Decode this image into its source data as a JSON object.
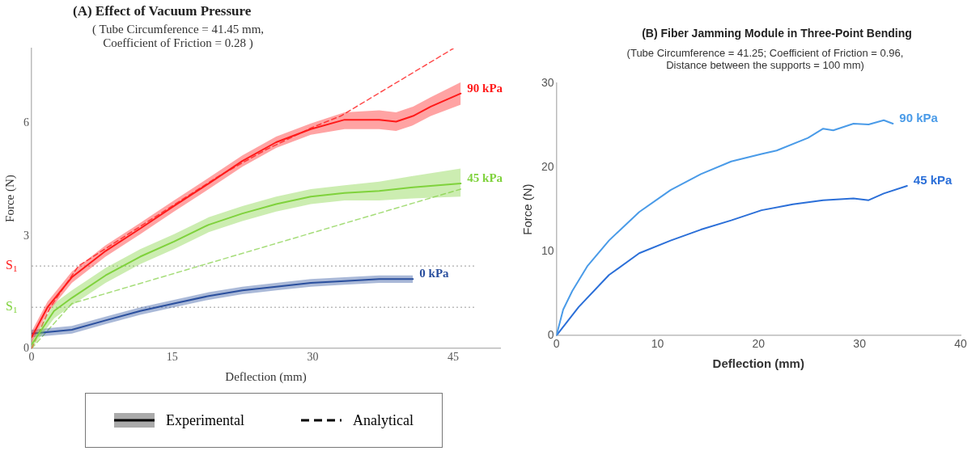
{
  "chart_data": [
    {
      "type": "line",
      "title": "(A) Effect of Vacuum Pressure",
      "subtitle": "( Tube Circumference = 41.45 mm,\nCoefficient of Friction = 0.28 )",
      "xlabel": "Deflection (mm)",
      "ylabel": "Force (N)",
      "xlim": [
        0,
        50
      ],
      "ylim": [
        0,
        8
      ],
      "xticks": [
        0,
        15,
        30,
        45
      ],
      "yticks": [
        0,
        3,
        6
      ],
      "grid": false,
      "legend": "bottom",
      "marker": "none",
      "line_style": "solid",
      "annotations": [
        "Experimental",
        "Analytical"
      ],
      "ref_lines": [
        {
          "axis": "y",
          "value": 2.2,
          "label": "S$_{1}$",
          "color": "#999999",
          "line_style": "dotted"
        },
        {
          "axis": "y",
          "value": 1.1,
          "label": "S$_{1}$",
          "color": "#999999",
          "line_style": "dotted"
        }
      ],
      "series": [
        {
          "name": "90 kPa",
          "color": "#ff1a1a",
          "x": [
            0,
            1.7,
            4.3,
            7.9,
            11.6,
            15.2,
            18.9,
            22.5,
            26.1,
            29.8,
            33.4,
            37.1,
            38.9,
            40.7,
            42.6,
            45.8
          ],
          "values": [
            0.3,
            1.1,
            1.9,
            2.6,
            3.2,
            3.8,
            4.4,
            5.0,
            5.5,
            5.85,
            6.1,
            6.1,
            6.05,
            6.2,
            6.45,
            6.8
          ],
          "lower": [
            0.15,
            0.95,
            1.75,
            2.45,
            3.05,
            3.65,
            4.25,
            4.85,
            5.35,
            5.7,
            5.85,
            5.85,
            5.8,
            5.95,
            6.2,
            6.5
          ],
          "upper": [
            0.45,
            1.25,
            2.05,
            2.75,
            3.35,
            3.95,
            4.55,
            5.15,
            5.65,
            6.0,
            6.3,
            6.35,
            6.3,
            6.45,
            6.7,
            7.1
          ]
        },
        {
          "name": "45 kPa",
          "color": "#7fd23c",
          "x": [
            0,
            2.4,
            4.3,
            7.9,
            11.6,
            15.2,
            18.9,
            22.5,
            26.1,
            29.8,
            33.4,
            37.1,
            40.7,
            45.8
          ],
          "values": [
            0.1,
            1.0,
            1.35,
            1.95,
            2.45,
            2.85,
            3.3,
            3.6,
            3.85,
            4.05,
            4.15,
            4.2,
            4.3,
            4.4
          ],
          "lower": [
            0,
            0.8,
            1.15,
            1.75,
            2.25,
            2.65,
            3.1,
            3.4,
            3.65,
            3.85,
            3.95,
            3.95,
            4.0,
            4.05
          ],
          "upper": [
            0.2,
            1.2,
            1.55,
            2.15,
            2.65,
            3.05,
            3.5,
            3.8,
            4.05,
            4.25,
            4.35,
            4.45,
            4.6,
            4.8
          ]
        },
        {
          "name": "0 kPa",
          "color": "#2a4f9e",
          "x": [
            0,
            4.3,
            7.9,
            11.6,
            15.2,
            18.9,
            22.5,
            26.1,
            29.8,
            33.4,
            37.1,
            40.7
          ],
          "values": [
            0.4,
            0.5,
            0.75,
            1.0,
            1.2,
            1.4,
            1.55,
            1.65,
            1.75,
            1.8,
            1.85,
            1.85
          ],
          "lower": [
            0.3,
            0.4,
            0.65,
            0.9,
            1.1,
            1.3,
            1.45,
            1.55,
            1.65,
            1.7,
            1.75,
            1.75
          ],
          "upper": [
            0.5,
            0.6,
            0.85,
            1.1,
            1.3,
            1.5,
            1.65,
            1.75,
            1.85,
            1.9,
            1.95,
            1.95
          ]
        },
        {
          "type": "line",
          "color": "#ff4d4d",
          "line_style": "dashed",
          "x": [
            0,
            2,
            5,
            10,
            15,
            20,
            25,
            30,
            33,
            45
          ],
          "values": [
            0,
            1.1,
            2.2,
            3.0,
            3.8,
            4.6,
            5.3,
            5.9,
            6.2,
            8.0
          ]
        },
        {
          "type": "line",
          "color": "#a6dd7a",
          "line_style": "dashed",
          "x": [
            0,
            4.3,
            45.8
          ],
          "values": [
            0,
            1.2,
            4.25
          ]
        }
      ]
    },
    {
      "type": "line",
      "title": "(B) Fiber Jamming Module in Three-Point Bending",
      "subtitle": "(Tube Circumference = 41.25; Coefficient of Friction = 0.96,\nDistance between the supports = 100 mm)",
      "xlabel": "Deflection (mm)",
      "ylabel": "Force (N)",
      "xlim": [
        0,
        40
      ],
      "ylim": [
        0,
        30
      ],
      "xticks": [
        0,
        10,
        20,
        30,
        40
      ],
      "yticks": [
        0,
        10,
        20,
        30
      ],
      "grid": false,
      "marker": "none",
      "line_style": "solid",
      "series": [
        {
          "name": "90 kPa",
          "color": "#4a9be8",
          "x": [
            0,
            0.67,
            1.57,
            3.09,
            5.2,
            8.2,
            11.3,
            14.3,
            17.3,
            20.3,
            21.8,
            24.9,
            26.4,
            27.4,
            29.4,
            30.9,
            32.4,
            33.3
          ],
          "values": [
            0,
            3.1,
            5.3,
            8.3,
            11.3,
            14.7,
            17.3,
            19.2,
            20.7,
            21.6,
            22.0,
            23.5,
            24.6,
            24.4,
            25.2,
            25.1,
            25.6,
            25.2
          ]
        },
        {
          "name": "45 kPa",
          "color": "#2b6fd8",
          "x": [
            0,
            2.2,
            5.2,
            8.2,
            11.3,
            14.3,
            17.3,
            20.3,
            23.4,
            26.4,
            29.4,
            30.9,
            32.4,
            34.7
          ],
          "values": [
            0,
            3.4,
            7.2,
            9.8,
            11.3,
            12.6,
            13.7,
            14.9,
            15.6,
            16.1,
            16.3,
            16.1,
            16.9,
            17.8
          ]
        }
      ]
    }
  ]
}
